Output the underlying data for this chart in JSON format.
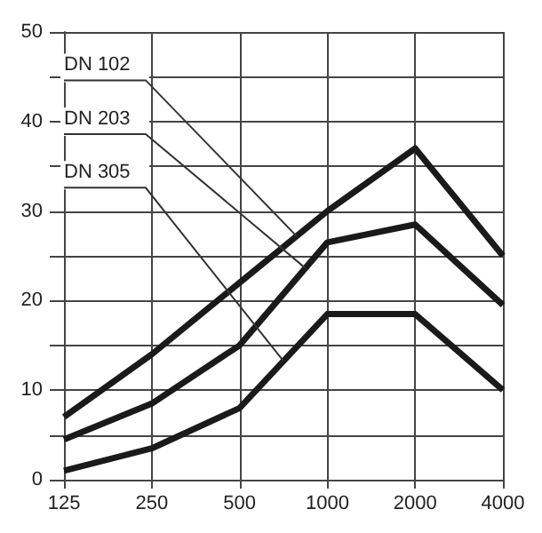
{
  "chart_data": {
    "type": "line",
    "categories": [
      "125",
      "250",
      "500",
      "1000",
      "2000",
      "4000"
    ],
    "series": [
      {
        "name": "DN 102",
        "color": "#1a1a1a",
        "values": [
          7,
          14,
          22,
          30,
          37,
          25
        ]
      },
      {
        "name": "DN 203",
        "color": "#1a1a1a",
        "values": [
          4.5,
          8.5,
          15,
          26.5,
          28.5,
          19.5
        ]
      },
      {
        "name": "DN 305",
        "color": "#1a1a1a",
        "values": [
          1,
          3.5,
          8,
          18.5,
          18.5,
          10
        ]
      }
    ],
    "ylim": [
      0,
      50
    ],
    "yticks": [
      0,
      {
        "value": 5,
        "label": null
      },
      10,
      {
        "value": 15,
        "label": null
      },
      20,
      {
        "value": 25,
        "label": null
      },
      30,
      {
        "value": 35,
        "label": null
      },
      40,
      {
        "value": 45,
        "label": null
      },
      50
    ],
    "grid": true,
    "legend": false,
    "marker": "none",
    "line_style": "solid"
  }
}
